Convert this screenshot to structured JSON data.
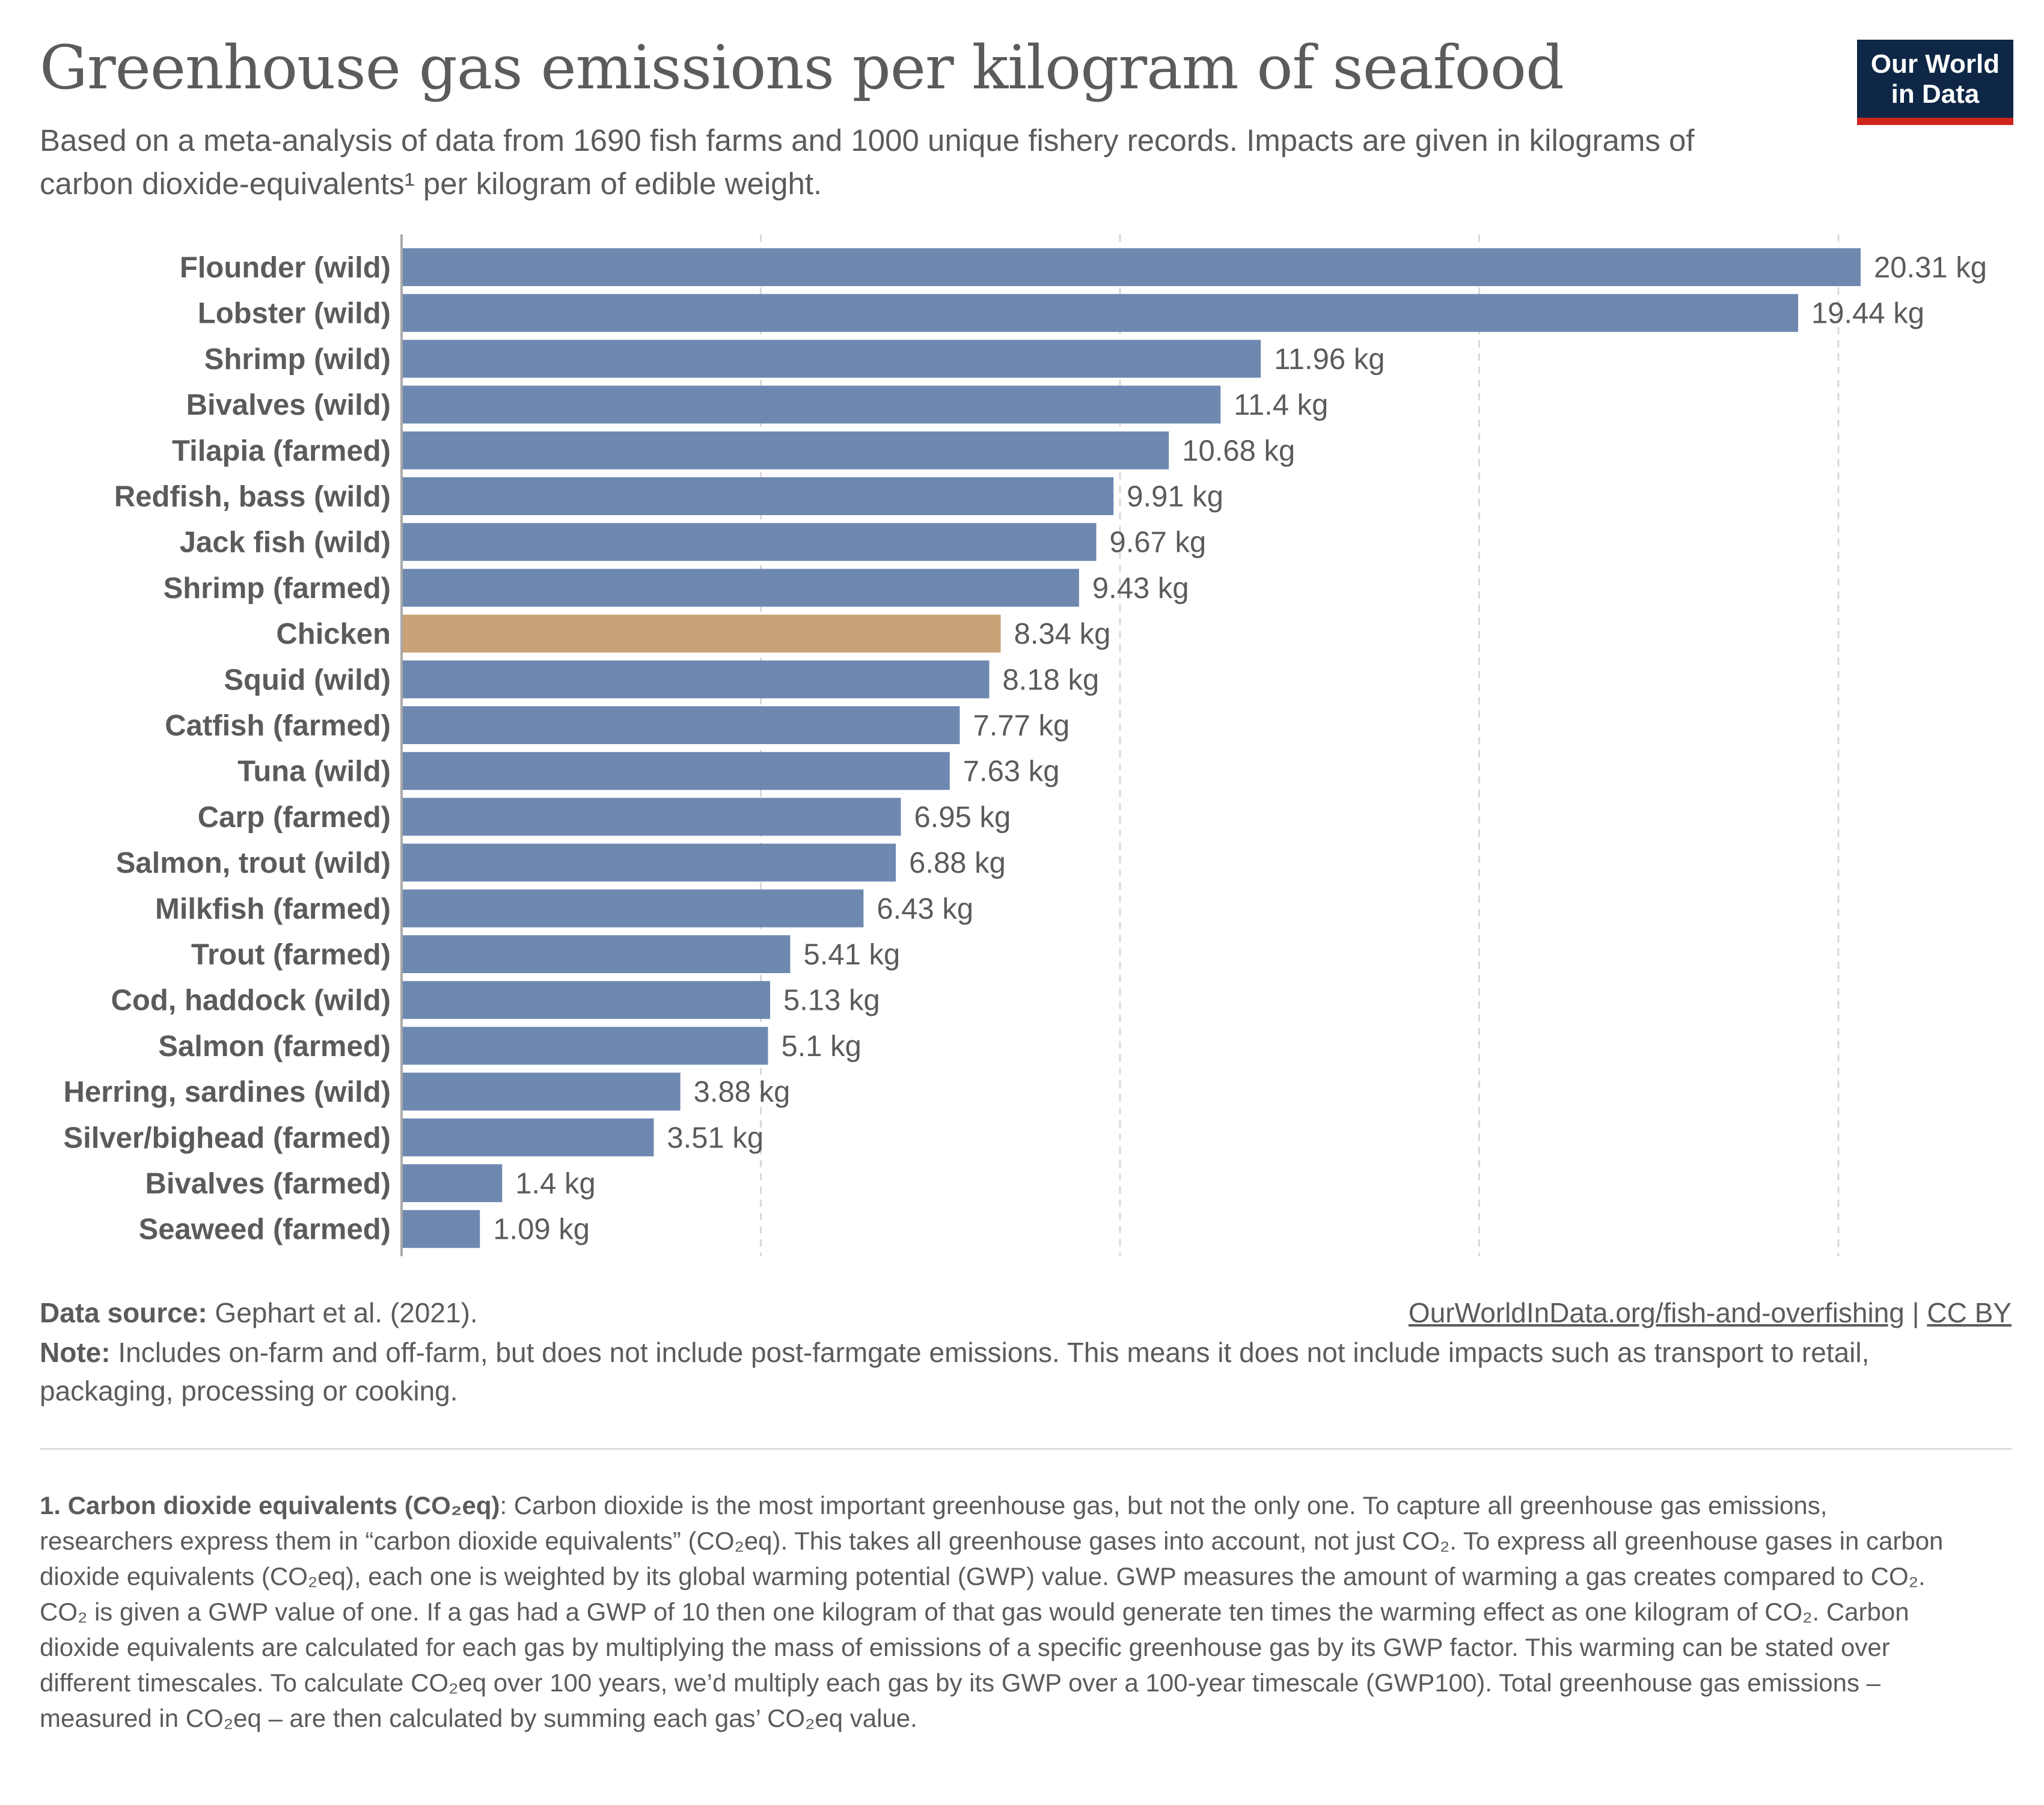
{
  "header": {
    "title": "Greenhouse gas emissions per kilogram of seafood",
    "subtitle": "Based on a meta-analysis of data from 1690 fish farms and 1000 unique fishery records. Impacts are given in kilograms of carbon dioxide-equivalents¹ per kilogram of edible weight.",
    "logo_line1": "Our World",
    "logo_line2": "in Data"
  },
  "chart_data": {
    "type": "bar",
    "orientation": "horizontal",
    "unit_suffix": " kg",
    "xlim": [
      0,
      20.31
    ],
    "grid": "vertical dashed",
    "colors": {
      "default": "#6e88b0",
      "highlight": "#c9a177"
    },
    "highlight_category": "Chicken",
    "categories": [
      "Flounder (wild)",
      "Lobster (wild)",
      "Shrimp (wild)",
      "Bivalves (wild)",
      "Tilapia (farmed)",
      "Redfish, bass (wild)",
      "Jack fish (wild)",
      "Shrimp (farmed)",
      "Chicken",
      "Squid (wild)",
      "Catfish (farmed)",
      "Tuna (wild)",
      "Carp (farmed)",
      "Salmon, trout (wild)",
      "Milkfish (farmed)",
      "Trout (farmed)",
      "Cod, haddock (wild)",
      "Salmon (farmed)",
      "Herring, sardines (wild)",
      "Silver/bighead (farmed)",
      "Bivalves (farmed)",
      "Seaweed (farmed)"
    ],
    "values": [
      20.31,
      19.44,
      11.96,
      11.4,
      10.68,
      9.91,
      9.67,
      9.43,
      8.34,
      8.18,
      7.77,
      7.63,
      6.95,
      6.88,
      6.43,
      5.41,
      5.13,
      5.1,
      3.88,
      3.51,
      1.4,
      1.09
    ],
    "value_labels": [
      "20.31 kg",
      "19.44 kg",
      "11.96 kg",
      "11.4 kg",
      "10.68 kg",
      "9.91 kg",
      "9.67 kg",
      "9.43 kg",
      "8.34 kg",
      "8.18 kg",
      "7.77 kg",
      "7.63 kg",
      "6.95 kg",
      "6.88 kg",
      "6.43 kg",
      "5.41 kg",
      "5.13 kg",
      "5.1 kg",
      "3.88 kg",
      "3.51 kg",
      "1.4 kg",
      "1.09 kg"
    ]
  },
  "footer": {
    "source_label": "Data source:",
    "source_text": " Gephart et al. (2021).",
    "url_text": "OurWorldInData.org/fish-and-overfishing",
    "separator": " | ",
    "license_text": "CC BY",
    "note_label": "Note:",
    "note_text": " Includes on-farm and off-farm, but does not include post-farmgate emissions. This means it does not include impacts such as transport to retail, packaging, processing or cooking.",
    "footnote_label": "1. Carbon dioxide equivalents (CO₂eq)",
    "footnote_text": ": Carbon dioxide is the most important greenhouse gas, but not the only one. To capture all greenhouse gas emissions, researchers express them in “carbon dioxide equivalents” (CO₂eq). This takes all greenhouse gases into account, not just CO₂. To express all greenhouse gases in carbon dioxide equivalents (CO₂eq), each one is weighted by its global warming potential (GWP) value. GWP measures the amount of warming a gas creates compared to CO₂. CO₂ is given a GWP value of one. If a gas had a GWP of 10 then one kilogram of that gas would generate ten times the warming effect as one kilogram of CO₂. Carbon dioxide equivalents are calculated for each gas by multiplying the mass of emissions of a specific greenhouse gas by its GWP factor. This warming can be stated over different timescales. To calculate CO₂eq over 100 years, we’d multiply each gas by its GWP over a 100-year timescale (GWP100). Total greenhouse gas emissions – measured in CO₂eq – are then calculated by summing each gas’ CO₂eq value."
  }
}
